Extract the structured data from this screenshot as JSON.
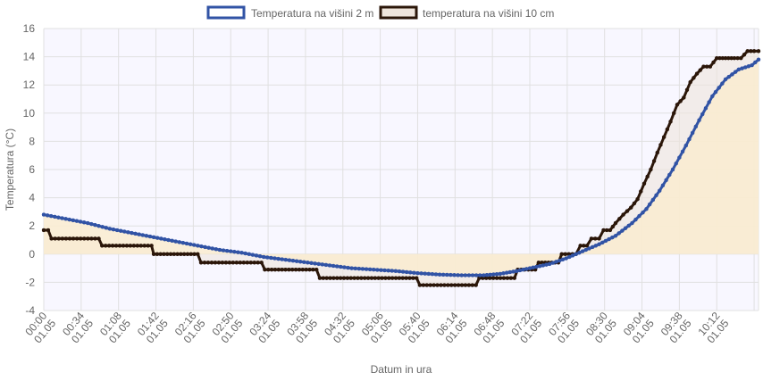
{
  "chart_data": {
    "type": "line",
    "title": "",
    "xlabel": "Datum in ura",
    "ylabel": "Temperatura (°C)",
    "ylim": [
      -4,
      16
    ],
    "yticks": [
      -4,
      -2,
      0,
      2,
      4,
      6,
      8,
      10,
      12,
      14,
      16
    ],
    "grid": true,
    "legend_position": "top-center",
    "x_minutes": [
      0,
      34,
      68,
      102,
      136,
      170,
      204,
      238,
      272,
      306,
      340,
      374,
      408,
      442,
      476,
      510,
      544,
      578,
      612,
      646,
      680
    ],
    "x_tick_labels": [
      [
        "00:00",
        "01.05"
      ],
      [
        "00:34",
        "01.05"
      ],
      [
        "01:08",
        "01.05"
      ],
      [
        "01:42",
        "01.05"
      ],
      [
        "02:16",
        "01.05"
      ],
      [
        "02:50",
        "01.05"
      ],
      [
        "03:24",
        "01.05"
      ],
      [
        "03:58",
        "01.05"
      ],
      [
        "04:32",
        "01.05"
      ],
      [
        "05:06",
        "01.05"
      ],
      [
        "05:40",
        "01.05"
      ],
      [
        "06:14",
        "01.05"
      ],
      [
        "06:48",
        "01.05"
      ],
      [
        "07:22",
        "01.05"
      ],
      [
        "07:56",
        "01.05"
      ],
      [
        "08:30",
        "01.05"
      ],
      [
        "09:04",
        "01.05"
      ],
      [
        "09:38",
        "01.05"
      ],
      [
        "10:12",
        "01.05"
      ]
    ],
    "x_tick_minutes": [
      0,
      34,
      68,
      102,
      136,
      170,
      204,
      238,
      272,
      306,
      340,
      374,
      408,
      442,
      476,
      510,
      544,
      578,
      612
    ],
    "x_end_minutes": 650,
    "series": [
      {
        "name": "Temperatura na višini 2 m",
        "color": "#3153a5",
        "fill": "#faecd0",
        "points": [
          [
            0,
            2.8
          ],
          [
            20,
            2.5
          ],
          [
            40,
            2.2
          ],
          [
            60,
            1.8
          ],
          [
            80,
            1.5
          ],
          [
            100,
            1.2
          ],
          [
            120,
            0.9
          ],
          [
            140,
            0.6
          ],
          [
            160,
            0.3
          ],
          [
            180,
            0.1
          ],
          [
            200,
            -0.2
          ],
          [
            220,
            -0.4
          ],
          [
            240,
            -0.6
          ],
          [
            260,
            -0.8
          ],
          [
            280,
            -1.0
          ],
          [
            300,
            -1.1
          ],
          [
            320,
            -1.2
          ],
          [
            340,
            -1.35
          ],
          [
            360,
            -1.45
          ],
          [
            380,
            -1.5
          ],
          [
            400,
            -1.5
          ],
          [
            415,
            -1.4
          ],
          [
            430,
            -1.2
          ],
          [
            445,
            -0.95
          ],
          [
            460,
            -0.7
          ],
          [
            475,
            -0.3
          ],
          [
            490,
            0.2
          ],
          [
            505,
            0.7
          ],
          [
            520,
            1.3
          ],
          [
            535,
            2.2
          ],
          [
            548,
            3.2
          ],
          [
            560,
            4.5
          ],
          [
            572,
            6.0
          ],
          [
            584,
            7.7
          ],
          [
            596,
            9.5
          ],
          [
            608,
            11.2
          ],
          [
            620,
            12.4
          ],
          [
            632,
            13.1
          ],
          [
            644,
            13.4
          ],
          [
            650,
            13.8
          ]
        ]
      },
      {
        "name": "temperatura na višini 10 cm",
        "color": "#2b1609",
        "fill": "#efe5dc",
        "points": [
          [
            0,
            1.7
          ],
          [
            4,
            1.7
          ],
          [
            7,
            1.1
          ],
          [
            50,
            1.1
          ],
          [
            53,
            0.6
          ],
          [
            98,
            0.6
          ],
          [
            100,
            0.0
          ],
          [
            140,
            0.0
          ],
          [
            143,
            -0.6
          ],
          [
            198,
            -0.6
          ],
          [
            201,
            -1.1
          ],
          [
            248,
            -1.1
          ],
          [
            251,
            -1.7
          ],
          [
            339,
            -1.7
          ],
          [
            342,
            -2.2
          ],
          [
            393,
            -2.2
          ],
          [
            396,
            -1.7
          ],
          [
            428,
            -1.7
          ],
          [
            431,
            -1.1
          ],
          [
            447,
            -1.1
          ],
          [
            450,
            -0.6
          ],
          [
            468,
            -0.6
          ],
          [
            471,
            0.0
          ],
          [
            484,
            0.0
          ],
          [
            488,
            0.6
          ],
          [
            494,
            0.6
          ],
          [
            498,
            1.1
          ],
          [
            505,
            1.1
          ],
          [
            509,
            1.7
          ],
          [
            515,
            1.7
          ],
          [
            520,
            2.2
          ],
          [
            527,
            2.8
          ],
          [
            534,
            3.3
          ],
          [
            540,
            3.9
          ],
          [
            546,
            5.0
          ],
          [
            552,
            6.0
          ],
          [
            558,
            7.2
          ],
          [
            564,
            8.3
          ],
          [
            570,
            9.4
          ],
          [
            576,
            10.6
          ],
          [
            582,
            11.1
          ],
          [
            588,
            12.2
          ],
          [
            594,
            12.8
          ],
          [
            600,
            13.3
          ],
          [
            606,
            13.3
          ],
          [
            612,
            13.9
          ],
          [
            620,
            13.9
          ],
          [
            628,
            13.9
          ],
          [
            634,
            13.9
          ],
          [
            640,
            14.4
          ],
          [
            646,
            14.4
          ],
          [
            650,
            14.4
          ]
        ]
      }
    ]
  }
}
